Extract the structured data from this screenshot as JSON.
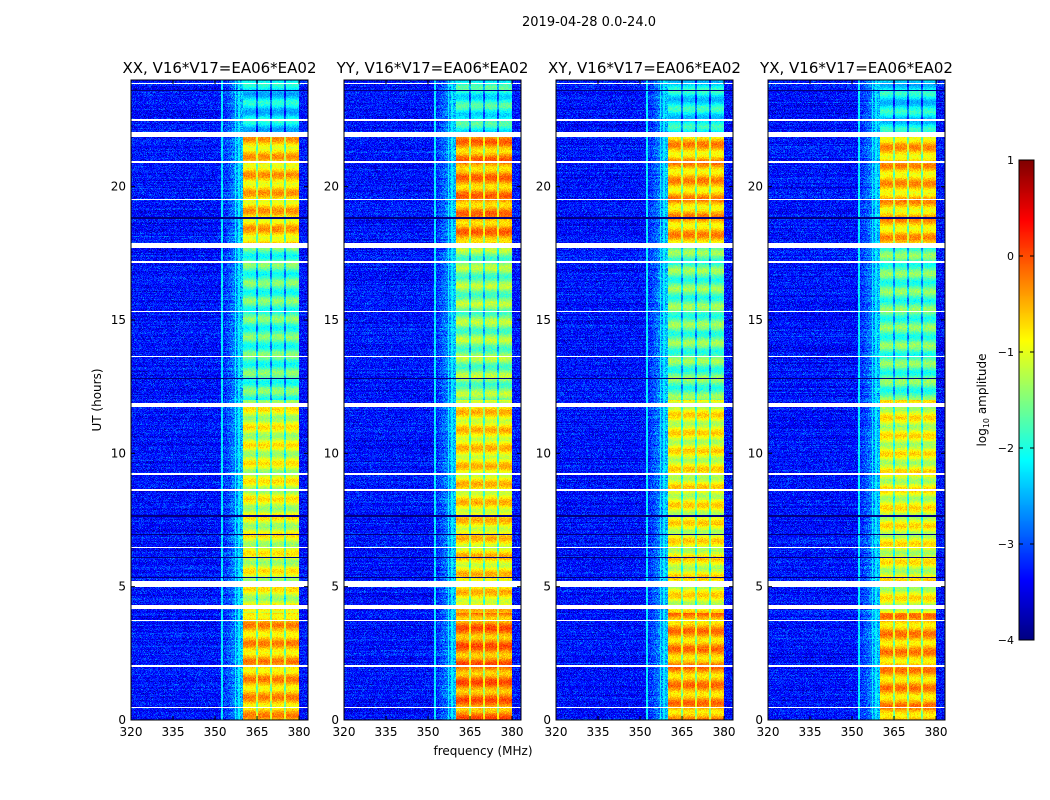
{
  "chart_data": {
    "type": "heatmap",
    "suptitle": "2019-04-28 0.0-24.0",
    "xlabel": "frequency (MHz)",
    "ylabel": "UT (hours)",
    "xlim": [
      320,
      383.2
    ],
    "ylim": [
      0,
      24
    ],
    "xticks": [
      320,
      335,
      350,
      365,
      380
    ],
    "yticks": [
      0,
      5,
      10,
      15,
      20
    ],
    "panels": [
      {
        "title": "XX, V16*V17=EA06*EA02",
        "band_offset": -0.15
      },
      {
        "title": "YY, V16*V17=EA06*EA02",
        "band_offset": 0.1
      },
      {
        "title": "XY, V16*V17=EA06*EA02",
        "band_offset": -0.05
      },
      {
        "title": "YX, V16*V17=EA06*EA02",
        "band_offset": -0.1
      }
    ],
    "background_level": -3.3,
    "bright_band_mhz": [
      360,
      380
    ],
    "subband_edges_mhz": [
      360,
      365,
      370,
      375,
      380
    ],
    "band_levels_by_time": [
      {
        "from": 0,
        "to": 4,
        "level": -0.4
      },
      {
        "from": 4,
        "to": 12,
        "level": -0.9
      },
      {
        "from": 12,
        "to": 17.7,
        "level": -1.6
      },
      {
        "from": 17.7,
        "to": 22,
        "level": -0.5
      },
      {
        "from": 22,
        "to": 24,
        "level": -2.1
      }
    ],
    "flagged_hours_white": [
      [
        23.85,
        23.9
      ],
      [
        22.45,
        22.52
      ],
      [
        21.85,
        22.05
      ],
      [
        17.7,
        17.88
      ],
      [
        17.15,
        17.2
      ],
      [
        11.75,
        11.9
      ],
      [
        5.0,
        5.2
      ],
      [
        4.15,
        4.3
      ],
      [
        3.7,
        3.75
      ],
      [
        2.0,
        2.05
      ],
      [
        0.45,
        0.5
      ],
      [
        20.9,
        20.95
      ],
      [
        19.5,
        19.55
      ],
      [
        15.3,
        15.35
      ],
      [
        13.6,
        13.65
      ],
      [
        9.2,
        9.25
      ],
      [
        8.6,
        8.65
      ],
      [
        6.45,
        6.5
      ]
    ],
    "flagged_hours_black": [
      [
        12.78,
        12.83
      ],
      [
        7.63,
        7.68
      ],
      [
        6.93,
        6.98
      ],
      [
        6.08,
        6.13
      ],
      [
        5.33,
        5.38
      ],
      [
        18.8,
        18.85
      ],
      [
        23.6,
        23.64
      ]
    ],
    "colorbar": {
      "label_prefix": "log",
      "label_sub": "10",
      "label_suffix": " amplitude",
      "range": [
        -4,
        1
      ],
      "ticks": [
        "1",
        "0",
        "−1",
        "−2",
        "−3",
        "−4"
      ],
      "colormap": "jet"
    }
  }
}
